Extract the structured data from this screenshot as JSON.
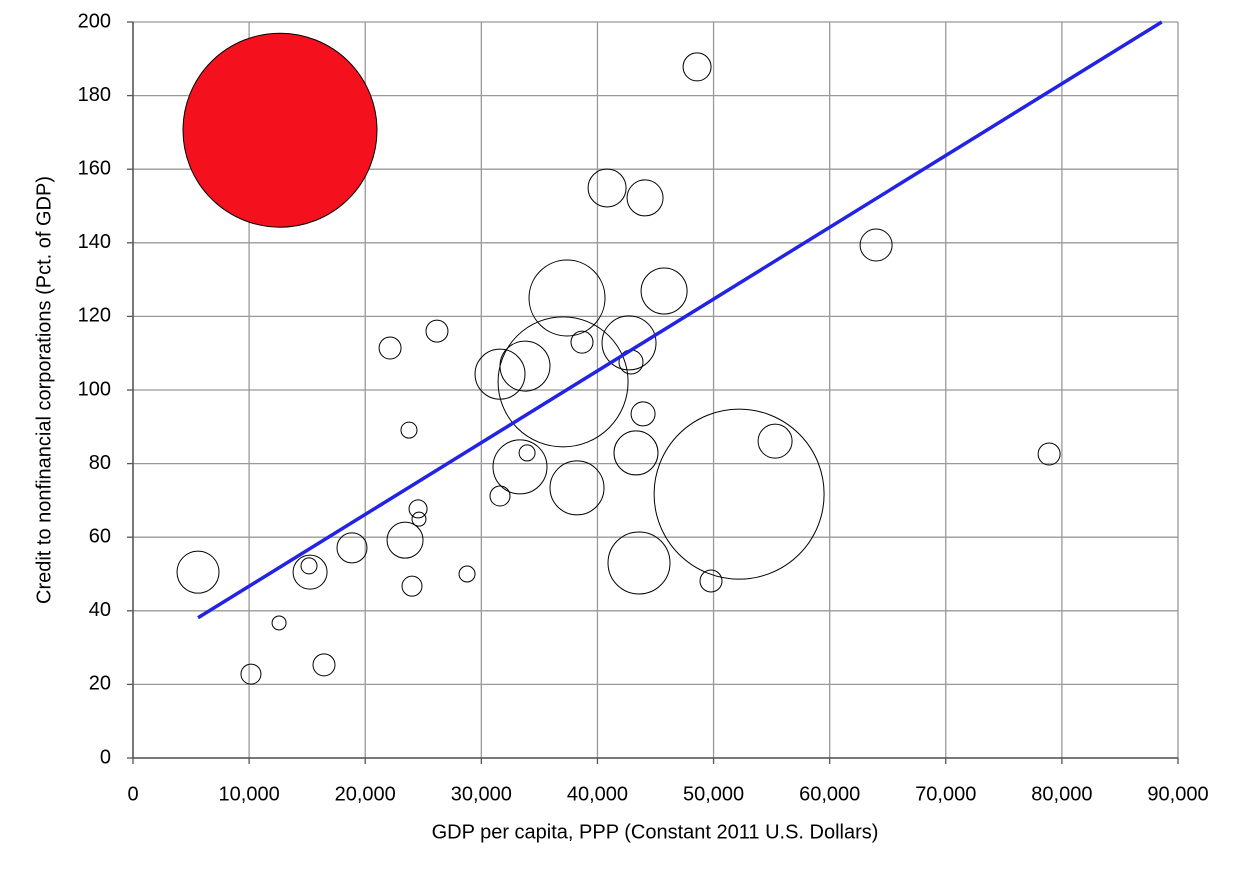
{
  "chart_data": {
    "type": "scatter",
    "x_label": "GDP per capita, PPP (Constant 2011 U.S. Dollars)",
    "y_label": "Credit to nonfinancial corporations (Pct. of GDP)",
    "xlim": [
      0,
      90000
    ],
    "ylim": [
      0,
      200
    ],
    "xticks": [
      0,
      {
        "value": 10000,
        "label": "10,000"
      },
      {
        "value": 20000,
        "label": "20,000"
      },
      {
        "value": 30000,
        "label": "30,000"
      },
      {
        "value": 40000,
        "label": "40,000"
      },
      {
        "value": 50000,
        "label": "50,000"
      },
      {
        "value": 60000,
        "label": "60,000"
      },
      {
        "value": 70000,
        "label": "70,000"
      },
      {
        "value": 80000,
        "label": "80,000"
      },
      {
        "value": 90000,
        "label": "90,000"
      }
    ],
    "yticks": [
      0,
      20,
      40,
      60,
      80,
      100,
      120,
      140,
      160,
      180,
      200
    ],
    "grid": true,
    "series": [
      {
        "color": "#f5101e",
        "x": [
          12660
        ],
        "values": [
          170.6
        ],
        "sizes": [
          97
        ]
      },
      {
        "color": "none",
        "x": [
          48580,
          40830,
          44100,
          64000,
          37380,
          45740,
          42720,
          42890,
          38670,
          26180,
          22140,
          31610,
          33760,
          37040,
          23770,
          43930,
          55300,
          78900,
          33940,
          33330,
          43320,
          38240,
          52200,
          31610,
          24550,
          24630,
          18860,
          23430,
          5600,
          15160,
          15250,
          28770,
          24030,
          43580,
          49780,
          12580,
          10160,
          16450
        ],
        "values": [
          187.8,
          154.9,
          152.2,
          139.4,
          125,
          126.9,
          112.8,
          107.6,
          113,
          116,
          111.4,
          104.3,
          106.5,
          102.2,
          89.1,
          93.5,
          86.1,
          82.6,
          82.9,
          79.1,
          82.9,
          73.4,
          71.7,
          71.2,
          67.7,
          64.9,
          57.1,
          59.2,
          50.5,
          52.2,
          50.5,
          50,
          46.7,
          53,
          48.1,
          36.7,
          22.8,
          25.3
        ],
        "sizes": [
          14,
          19,
          18,
          16,
          38,
          23,
          27,
          12,
          11,
          11,
          11,
          25,
          25,
          65,
          8,
          12,
          17,
          11,
          8,
          27,
          22,
          27,
          85,
          10,
          9,
          7,
          15,
          18,
          21,
          8,
          17,
          8,
          10,
          31,
          11,
          7,
          10,
          11
        ]
      }
    ],
    "trend": {
      "color": "#2323e6",
      "x": [
        5600,
        88600
      ],
      "values": [
        38.1,
        200
      ]
    }
  }
}
